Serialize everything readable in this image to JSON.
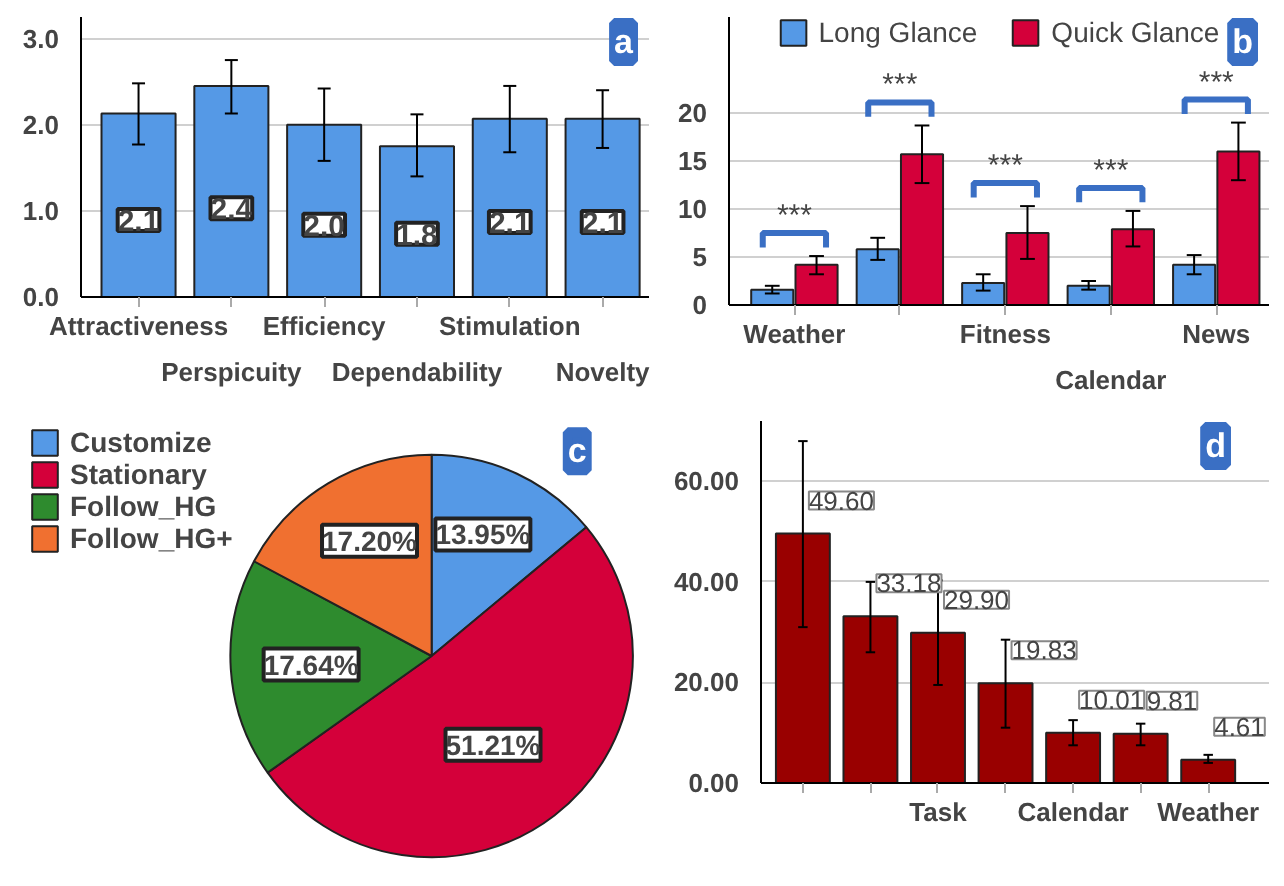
{
  "chart_data": [
    {
      "type": "bar",
      "categories": [
        "Attractiveness",
        "Perspicuity",
        "Efficiency",
        "Dependability",
        "Stimulation",
        "Novelty"
      ],
      "values": [
        2.13,
        2.45,
        2.0,
        1.75,
        2.07,
        2.07
      ],
      "value_labels": [
        "2.1",
        "2.4",
        "2.0",
        "1.8",
        "2.1",
        "2.1"
      ],
      "errors": [
        [
          1.77,
          2.48
        ],
        [
          2.13,
          2.75
        ],
        [
          1.58,
          2.42
        ],
        [
          1.4,
          2.12
        ],
        [
          1.68,
          2.45
        ],
        [
          1.73,
          2.4
        ]
      ],
      "color": "#5599e6",
      "ylim": [
        0,
        3.25
      ],
      "yticks": [
        {
          "value": 0,
          "label": "0.0"
        },
        {
          "value": 1,
          "label": "1.0"
        },
        {
          "value": 2,
          "label": "2.0"
        },
        {
          "value": 3,
          "label": "3.0"
        }
      ],
      "grid": "y",
      "annotations": [
        "a"
      ]
    },
    {
      "type": "bar",
      "categories": [
        "Weather",
        null,
        "Fitness",
        "Calendar",
        "News"
      ],
      "series": [
        {
          "name": "Long Glance",
          "color": "#5599e6",
          "values": [
            1.6,
            5.8,
            2.3,
            2.0,
            4.2
          ],
          "errors": [
            [
              1.2,
              2.0
            ],
            [
              4.7,
              7.0
            ],
            [
              1.5,
              3.2
            ],
            [
              1.6,
              2.5
            ],
            [
              3.2,
              5.2
            ]
          ]
        },
        {
          "name": "Quick Glance",
          "color": "#d4003a",
          "values": [
            4.2,
            15.7,
            7.5,
            7.9,
            16.0
          ],
          "errors": [
            [
              3.2,
              5.1
            ],
            [
              12.7,
              18.7
            ],
            [
              4.8,
              10.3
            ],
            [
              6.1,
              9.8
            ],
            [
              13.0,
              19.0
            ]
          ]
        }
      ],
      "ylim": [
        0,
        30
      ],
      "yticks": [
        0,
        5,
        10,
        15,
        20
      ],
      "grid": "y",
      "legend": "top",
      "annotations": [
        "***",
        "***",
        "***",
        "***",
        "***",
        "b"
      ]
    },
    {
      "type": "pie",
      "categories": [
        "Customize",
        "Stationary",
        "Follow_HG",
        "Follow_HG+"
      ],
      "values": [
        13.95,
        51.21,
        17.64,
        17.2
      ],
      "value_labels": [
        "13.95%",
        "51.21%",
        "17.64%",
        "17.20%"
      ],
      "colors": [
        "#5599e6",
        "#d4003a",
        "#2e8b2e",
        "#f07030"
      ],
      "legend": "top left",
      "annotations": [
        "c"
      ]
    },
    {
      "type": "bar",
      "categories": [
        null,
        null,
        "Task",
        null,
        "Calendar",
        null,
        "Weather"
      ],
      "values": [
        49.6,
        33.18,
        29.9,
        19.83,
        10.01,
        9.81,
        4.61
      ],
      "value_labels": [
        "49.60",
        "33.18",
        "29.90",
        "19.83",
        "10.01",
        "9.81",
        "4.61"
      ],
      "errors": [
        [
          31,
          68
        ],
        [
          26,
          40
        ],
        [
          19.5,
          40.3
        ],
        [
          11,
          28.5
        ],
        [
          7.5,
          12.5
        ],
        [
          7.5,
          11.8
        ],
        [
          4,
          5.6
        ]
      ],
      "color": "#990000",
      "ylim": [
        0,
        72
      ],
      "yticks": [
        {
          "value": 0,
          "label": "0.00"
        },
        {
          "value": 20,
          "label": "20.00"
        },
        {
          "value": 40,
          "label": "40.00"
        },
        {
          "value": 60,
          "label": "60.00"
        }
      ],
      "grid": "y",
      "annotations": [
        "d"
      ]
    }
  ]
}
